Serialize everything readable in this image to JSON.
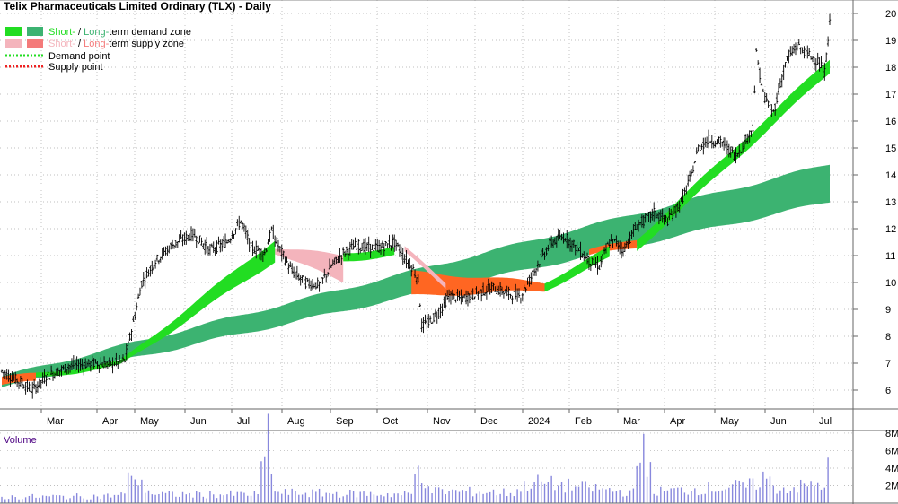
{
  "title": "Telix Pharmaceuticals Limited Ordinary (TLX) - Daily",
  "colors": {
    "short_demand": "#22dd22",
    "long_demand": "#3cb371",
    "short_supply": "#f4b4bc",
    "long_supply": "#ff6622",
    "demand_point": "#22dd22",
    "supply_point": "#ee2222",
    "volume_bar": "#8888dd",
    "grid": "#aaaaaa",
    "candle": "#000000"
  },
  "legend": [
    {
      "short_label": "Short-",
      "sep": " / ",
      "long_label": "Long-",
      "text": "term demand zone",
      "kind": "demand-zone"
    },
    {
      "short_label": "Short-",
      "sep": " / ",
      "long_label": "Long-",
      "text": "term supply zone",
      "kind": "supply-zone"
    },
    {
      "text": "Demand point",
      "kind": "demand-point"
    },
    {
      "text": "Supply point",
      "kind": "supply-point"
    }
  ],
  "volume_panel": {
    "label": "Volume"
  },
  "chart_data": {
    "type": "candlestick",
    "x_axis": {
      "labels": [
        "Mar",
        "Apr",
        "May",
        "Jun",
        "Jul",
        "Aug",
        "Sep",
        "Oct",
        "Nov",
        "Dec",
        "2024",
        "Feb",
        "Mar",
        "Apr",
        "May",
        "Jun",
        "Jul"
      ]
    },
    "y_axis": {
      "ticks": [
        "6",
        "7",
        "8",
        "9",
        "10",
        "11",
        "12",
        "13",
        "14",
        "15",
        "16",
        "17",
        "18",
        "19",
        "20"
      ],
      "range": [
        5.3,
        20.5
      ],
      "position": "right"
    },
    "volume_axis": {
      "ticks": [
        "2M",
        "4M",
        "6M",
        "8M"
      ],
      "range": [
        0,
        8.3
      ]
    },
    "price_keypoints": [
      [
        0,
        6.7
      ],
      [
        8,
        6.4
      ],
      [
        18,
        6.0
      ],
      [
        26,
        6.5
      ],
      [
        40,
        6.9
      ],
      [
        55,
        7.0
      ],
      [
        62,
        6.95
      ],
      [
        72,
        7.1
      ],
      [
        78,
        8.8
      ],
      [
        82,
        10.0
      ],
      [
        90,
        10.8
      ],
      [
        100,
        11.4
      ],
      [
        112,
        11.8
      ],
      [
        122,
        11.2
      ],
      [
        132,
        11.5
      ],
      [
        140,
        12.3
      ],
      [
        146,
        11.3
      ],
      [
        154,
        11.1
      ],
      [
        158,
        11.9
      ],
      [
        164,
        11.1
      ],
      [
        170,
        10.4
      ],
      [
        178,
        10.0
      ],
      [
        186,
        9.9
      ],
      [
        193,
        10.6
      ],
      [
        200,
        11.1
      ],
      [
        208,
        11.4
      ],
      [
        214,
        11.3
      ],
      [
        222,
        11.3
      ],
      [
        230,
        11.5
      ],
      [
        236,
        10.9
      ],
      [
        240,
        10.6
      ],
      [
        244,
        10.1
      ],
      [
        246,
        8.4
      ],
      [
        250,
        8.5
      ],
      [
        256,
        8.9
      ],
      [
        262,
        9.5
      ],
      [
        270,
        9.4
      ],
      [
        278,
        9.6
      ],
      [
        288,
        9.8
      ],
      [
        296,
        9.6
      ],
      [
        304,
        9.5
      ],
      [
        310,
        10.2
      ],
      [
        316,
        10.9
      ],
      [
        322,
        11.5
      ],
      [
        330,
        11.7
      ],
      [
        338,
        11.2
      ],
      [
        344,
        10.8
      ],
      [
        350,
        10.6
      ],
      [
        356,
        11.5
      ],
      [
        360,
        11.5
      ],
      [
        364,
        11.2
      ],
      [
        372,
        12.1
      ],
      [
        382,
        12.6
      ],
      [
        390,
        12.3
      ],
      [
        398,
        13.0
      ],
      [
        404,
        14.0
      ],
      [
        408,
        15.0
      ],
      [
        414,
        15.3
      ],
      [
        422,
        15.2
      ],
      [
        430,
        14.7
      ],
      [
        436,
        15.3
      ],
      [
        440,
        15.8
      ],
      [
        442,
        18.5
      ],
      [
        446,
        17.0
      ],
      [
        452,
        16.3
      ],
      [
        456,
        17.4
      ],
      [
        460,
        18.3
      ],
      [
        466,
        18.8
      ],
      [
        472,
        18.5
      ],
      [
        478,
        18.2
      ],
      [
        482,
        17.8
      ],
      [
        485,
        19.6
      ]
    ],
    "volume_keypoints": [
      [
        0,
        0.7
      ],
      [
        60,
        0.8
      ],
      [
        72,
        1.0
      ],
      [
        76,
        4.2
      ],
      [
        80,
        2.2
      ],
      [
        90,
        1.0
      ],
      [
        150,
        1.0
      ],
      [
        156,
        8.0
      ],
      [
        160,
        1.2
      ],
      [
        240,
        1.0
      ],
      [
        244,
        5.0
      ],
      [
        250,
        1.4
      ],
      [
        300,
        1.2
      ],
      [
        310,
        2.4
      ],
      [
        370,
        1.2
      ],
      [
        376,
        7.5
      ],
      [
        382,
        1.3
      ],
      [
        440,
        2.0
      ],
      [
        446,
        3.0
      ],
      [
        455,
        1.6
      ],
      [
        482,
        2.2
      ],
      [
        485,
        4.6
      ]
    ],
    "short_demand_zone": [
      {
        "from": 20,
        "to": 69,
        "lower": [
          6.45,
          6.9
        ],
        "upper": [
          6.6,
          7.05
        ]
      },
      {
        "from": 69,
        "to": 160,
        "lower": [
          6.9,
          10.8
        ],
        "upper": [
          7.05,
          11.6
        ]
      },
      {
        "from": 200,
        "to": 230,
        "lower": [
          10.8,
          11.0
        ],
        "upper": [
          11.1,
          11.3
        ]
      },
      {
        "from": 318,
        "to": 356,
        "lower": [
          9.7,
          10.9
        ],
        "upper": [
          10.0,
          11.3
        ]
      },
      {
        "from": 372,
        "to": 485,
        "lower": [
          11.2,
          17.8
        ],
        "upper": [
          11.6,
          18.3
        ]
      }
    ],
    "long_demand_zone": [
      {
        "from": 0,
        "to": 485,
        "lower": [
          6.1,
          13.0
        ],
        "upper": [
          6.5,
          14.4
        ]
      }
    ],
    "short_supply_zone": [
      {
        "from": 160,
        "to": 200,
        "lower": [
          11.1,
          10.0
        ],
        "upper": [
          11.3,
          11.0
        ]
      },
      {
        "from": 236,
        "to": 260,
        "lower": [
          11.1,
          9.8
        ],
        "upper": [
          11.3,
          10.0
        ]
      }
    ],
    "long_supply_zone": [
      {
        "from": 0,
        "to": 20,
        "lower": [
          6.2,
          6.3
        ],
        "upper": [
          6.5,
          6.6
        ]
      },
      {
        "from": 240,
        "to": 318,
        "lower": [
          9.5,
          9.7
        ],
        "upper": [
          10.4,
          10.0
        ]
      },
      {
        "from": 344,
        "to": 372,
        "lower": [
          11.0,
          11.3
        ],
        "upper": [
          11.2,
          11.6
        ]
      }
    ]
  }
}
